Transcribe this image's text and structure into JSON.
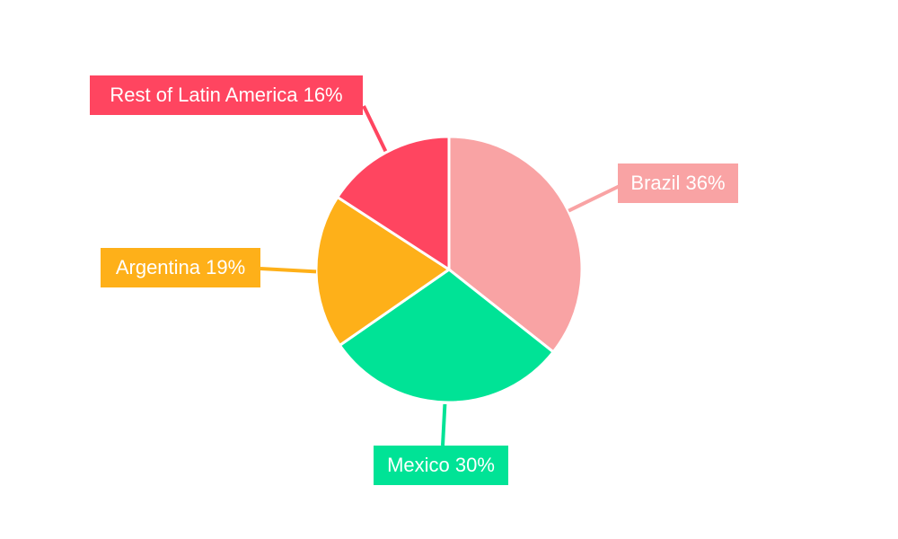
{
  "chart_data": {
    "type": "pie",
    "title": "",
    "start_angle": "top, clockwise",
    "slices": [
      {
        "label": "Brazil",
        "value": 36,
        "display": "Brazil 36%",
        "color": "#F9A3A4"
      },
      {
        "label": "Mexico",
        "value": 30,
        "display": "Mexico 30%",
        "color": "#00E396"
      },
      {
        "label": "Argentina",
        "value": 19,
        "display": "Argentina 19%",
        "color": "#FEB019"
      },
      {
        "label": "Rest of Latin America",
        "value": 16,
        "display": "Rest of Latin America 16%",
        "color": "#FF4560"
      }
    ]
  }
}
